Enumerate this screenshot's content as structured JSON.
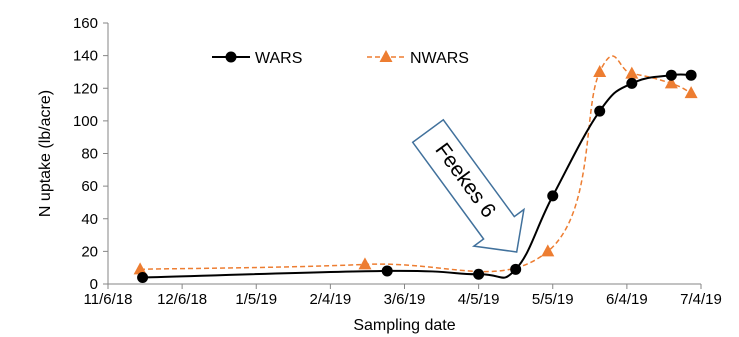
{
  "chart_data": {
    "type": "line",
    "title": "",
    "xlabel": "Sampling date",
    "ylabel": "N uptake (lb/acre)",
    "x_ticks": [
      "11/6/18",
      "12/6/18",
      "1/5/19",
      "2/4/19",
      "3/6/19",
      "4/5/19",
      "5/5/19",
      "6/4/19",
      "7/4/19"
    ],
    "x_range": [
      "2018-11-06",
      "2019-07-04"
    ],
    "y_ticks": [
      "0",
      "20",
      "40",
      "60",
      "80",
      "100",
      "120",
      "140",
      "160"
    ],
    "ylim": [
      0,
      160
    ],
    "grid": false,
    "legend_position": "top-left",
    "series": [
      {
        "name": "WARS",
        "color": "#000000",
        "marker": "circle",
        "line_style": "solid",
        "x": [
          "2018-11-20",
          "2019-02-27",
          "2019-04-05",
          "2019-04-20",
          "2019-05-05",
          "2019-05-24",
          "2019-06-06",
          "2019-06-22",
          "2019-06-30"
        ],
        "values": [
          4,
          8,
          6,
          9,
          54,
          106,
          123,
          128,
          128
        ]
      },
      {
        "name": "NWARS",
        "color": "#ED7D31",
        "marker": "triangle",
        "line_style": "dashed",
        "x": [
          "2018-11-19",
          "2019-02-18",
          "2019-05-03",
          "2019-05-24",
          "2019-06-06",
          "2019-06-22",
          "2019-06-30"
        ],
        "values": [
          9,
          12,
          20,
          130,
          129,
          123,
          117
        ]
      }
    ],
    "annotations": [
      {
        "text": "Feekes 6",
        "shape": "arrow",
        "points_to_date": "2019-04-20"
      }
    ]
  }
}
